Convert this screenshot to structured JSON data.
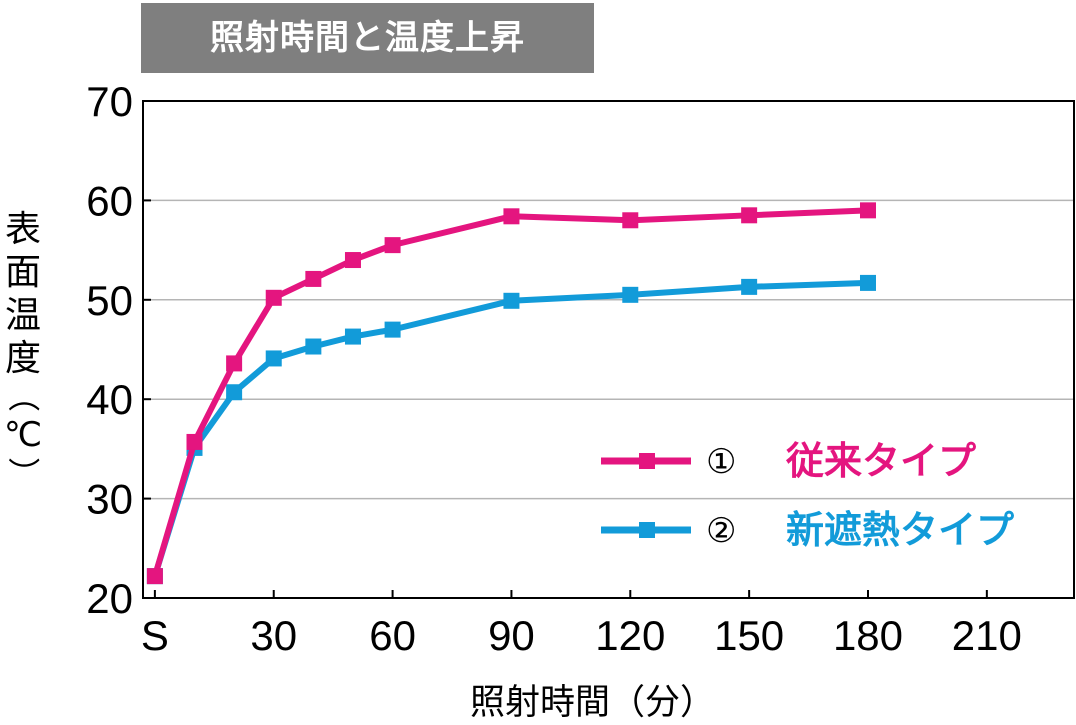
{
  "chart_data": {
    "type": "line",
    "title": "照射時間と温度上昇",
    "xlabel": "照射時間（分）",
    "ylabel_chars": [
      "表",
      "面",
      "温",
      "度"
    ],
    "ylabel_unit": "（℃）",
    "ylabel_unit_parts": [
      "（",
      "℃",
      "）"
    ],
    "ylim": [
      20,
      70
    ],
    "yticks": [
      20,
      30,
      40,
      50,
      60,
      70
    ],
    "xlim": [
      -3,
      232
    ],
    "xticks": [
      {
        "label": "S",
        "value": 0
      },
      {
        "label": "30",
        "value": 30
      },
      {
        "label": "60",
        "value": 60
      },
      {
        "label": "90",
        "value": 90
      },
      {
        "label": "120",
        "value": 120
      },
      {
        "label": "150",
        "value": 150
      },
      {
        "label": "180",
        "value": 180
      },
      {
        "label": "210",
        "value": 210
      }
    ],
    "grid": "horizontal",
    "legend_position": "right",
    "series": [
      {
        "name": "従来タイプ",
        "marker_label": "①",
        "color": "#e4157f",
        "x": [
          0,
          10,
          20,
          30,
          40,
          50,
          60,
          90,
          120,
          150,
          180
        ],
        "y": [
          22.2,
          35.7,
          43.6,
          50.2,
          52.1,
          54.0,
          55.5,
          58.4,
          58.0,
          58.5,
          59.0
        ]
      },
      {
        "name": "新遮熱タイプ",
        "marker_label": "②",
        "color": "#129bd9",
        "x": [
          0,
          10,
          20,
          30,
          40,
          50,
          60,
          90,
          120,
          150,
          180
        ],
        "y": [
          22.2,
          35.1,
          40.7,
          44.1,
          45.3,
          46.3,
          47.0,
          49.9,
          50.5,
          51.3,
          51.7
        ]
      }
    ]
  }
}
